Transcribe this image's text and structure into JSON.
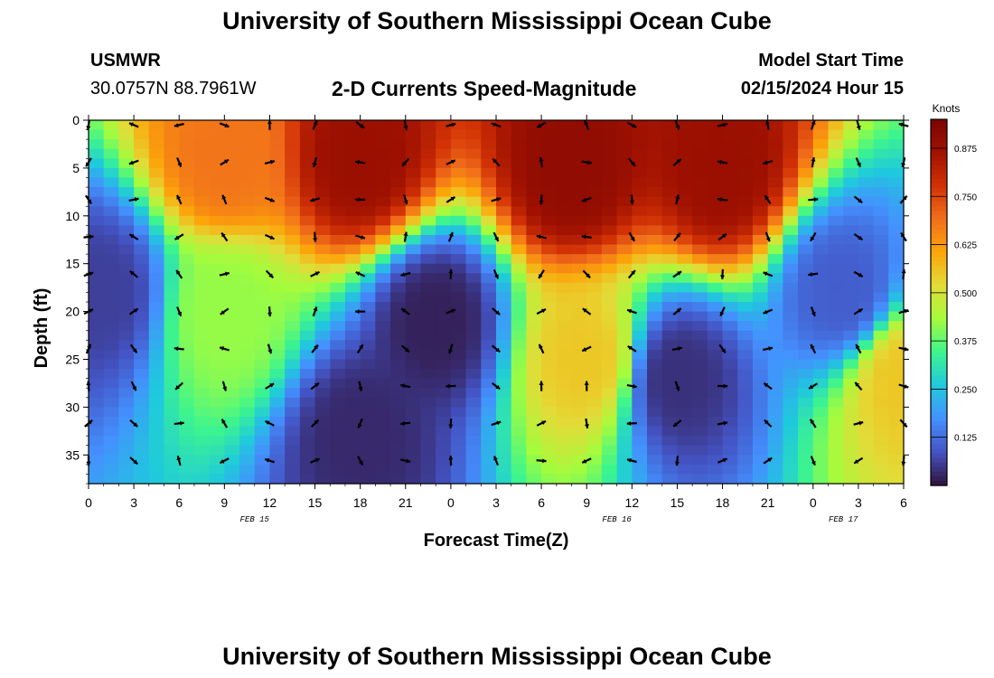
{
  "page": {
    "title": "University of Southern Mississippi Ocean Cube",
    "footer_title": "University of Southern Mississippi Ocean Cube"
  },
  "header": {
    "station": "USMWR",
    "coords": "30.0757N  88.7961W",
    "plot_title": "2-D Currents Speed-Magnitude",
    "model_start_label": "Model Start Time",
    "model_start_value": "02/15/2024 Hour 15"
  },
  "chart_data": {
    "type": "heatmap",
    "title": "2-D Currents Speed-Magnitude",
    "xlabel": "Forecast Time(Z)",
    "ylabel": "Depth (ft)",
    "x_tick_labels": [
      "0",
      "3",
      "6",
      "9",
      "12",
      "15",
      "18",
      "21",
      "0",
      "3",
      "6",
      "9",
      "12",
      "15",
      "18",
      "21",
      "0",
      "3",
      "6"
    ],
    "x_range_hours": [
      0,
      54
    ],
    "date_labels": [
      {
        "label": "FEB 15",
        "hour": 11
      },
      {
        "label": "FEB 16",
        "hour": 35
      },
      {
        "label": "FEB 17",
        "hour": 50
      }
    ],
    "y_ticks": [
      0,
      5,
      10,
      15,
      20,
      25,
      30,
      35
    ],
    "ylim": [
      0,
      38
    ],
    "colorbar": {
      "label": "Knots",
      "ticks": [
        "0.875",
        "0.750",
        "0.625",
        "0.500",
        "0.375",
        "0.250",
        "0.125"
      ],
      "range": [
        0,
        0.95
      ],
      "colors": [
        "#30123b",
        "#4454c4",
        "#4490fe",
        "#1fc9dd",
        "#3df58d",
        "#a4fc3c",
        "#e2dc38",
        "#fca50a",
        "#f16f1b",
        "#d23105",
        "#a11201",
        "#7a0403"
      ]
    },
    "speed_anchors_knots": [
      {
        "hour": 1,
        "depth": 18,
        "speed": 0.06
      },
      {
        "hour": 9,
        "depth": 4,
        "speed": 0.68
      },
      {
        "hour": 9,
        "depth": 20,
        "speed": 0.42
      },
      {
        "hour": 18,
        "depth": 4,
        "speed": 0.88
      },
      {
        "hour": 18,
        "depth": 33,
        "speed": 0.03
      },
      {
        "hour": 23,
        "depth": 21,
        "speed": 0.02
      },
      {
        "hour": 32,
        "depth": 5,
        "speed": 0.9
      },
      {
        "hour": 33,
        "depth": 25,
        "speed": 0.55
      },
      {
        "hour": 39,
        "depth": 27,
        "speed": 0.04
      },
      {
        "hour": 42,
        "depth": 5,
        "speed": 0.88
      },
      {
        "hour": 50,
        "depth": 18,
        "speed": 0.1
      },
      {
        "hour": 54,
        "depth": 27,
        "speed": 0.55
      }
    ],
    "grid": false
  }
}
